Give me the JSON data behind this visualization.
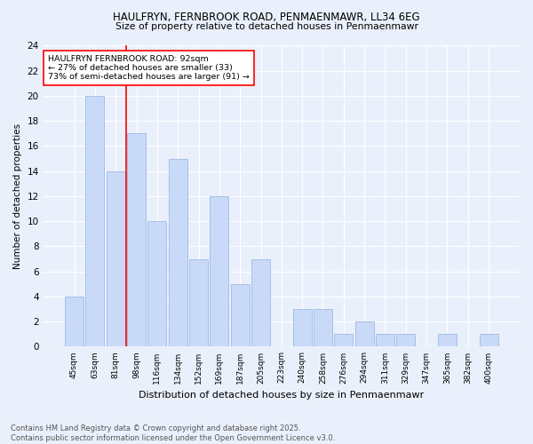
{
  "title1": "HAULFRYN, FERNBROOK ROAD, PENMAENMAWR, LL34 6EG",
  "title2": "Size of property relative to detached houses in Penmaenmawr",
  "xlabel": "Distribution of detached houses by size in Penmaenmawr",
  "ylabel": "Number of detached properties",
  "bar_labels": [
    "45sqm",
    "63sqm",
    "81sqm",
    "98sqm",
    "116sqm",
    "134sqm",
    "152sqm",
    "169sqm",
    "187sqm",
    "205sqm",
    "223sqm",
    "240sqm",
    "258sqm",
    "276sqm",
    "294sqm",
    "311sqm",
    "329sqm",
    "347sqm",
    "365sqm",
    "382sqm",
    "400sqm"
  ],
  "bar_values": [
    4,
    20,
    14,
    17,
    10,
    15,
    7,
    12,
    5,
    7,
    0,
    3,
    3,
    1,
    2,
    1,
    1,
    0,
    1,
    0,
    1
  ],
  "bar_color": "#c9daf8",
  "bar_edge_color": "#a4bfe8",
  "vline_color": "red",
  "vline_pos": 2.5,
  "annotation_text": "HAULFRYN FERNBROOK ROAD: 92sqm\n← 27% of detached houses are smaller (33)\n73% of semi-detached houses are larger (91) →",
  "ylim": [
    0,
    24
  ],
  "yticks": [
    0,
    2,
    4,
    6,
    8,
    10,
    12,
    14,
    16,
    18,
    20,
    22,
    24
  ],
  "footer": "Contains HM Land Registry data © Crown copyright and database right 2025.\nContains public sector information licensed under the Open Government Licence v3.0.",
  "bg_color": "#eaf0fb",
  "plot_bg_color": "#eaf0fb"
}
